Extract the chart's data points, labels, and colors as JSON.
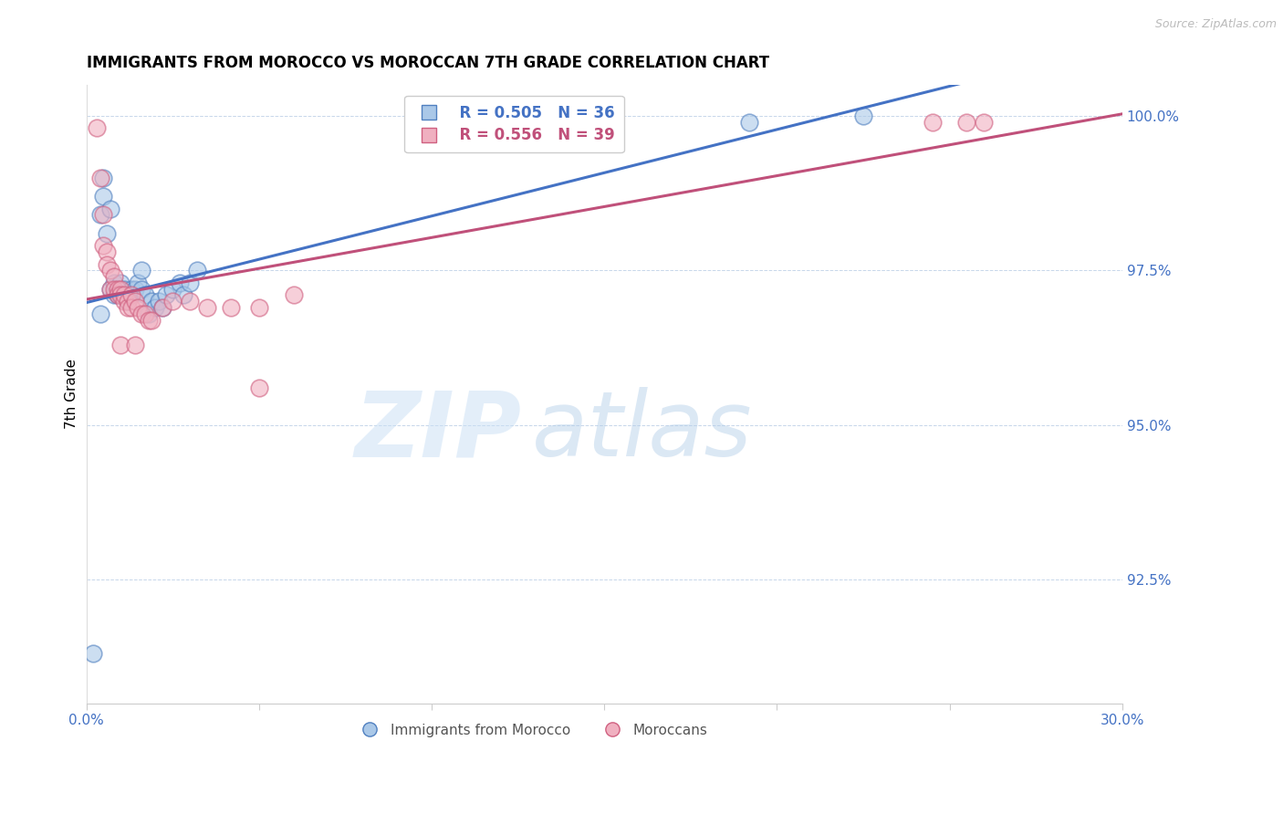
{
  "title": "IMMIGRANTS FROM MOROCCO VS MOROCCAN 7TH GRADE CORRELATION CHART",
  "source": "Source: ZipAtlas.com",
  "ylabel": "7th Grade",
  "xlim": [
    0.0,
    0.3
  ],
  "ylim": [
    0.905,
    1.005
  ],
  "yticks_right": [
    1.0,
    0.975,
    0.95,
    0.925
  ],
  "ytick_labels_right": [
    "100.0%",
    "97.5%",
    "95.0%",
    "92.5%"
  ],
  "xtick_positions": [
    0.0,
    0.05,
    0.1,
    0.15,
    0.2,
    0.25,
    0.3
  ],
  "xtick_labels": [
    "0.0%",
    "",
    "",
    "",
    "",
    "",
    "30.0%"
  ],
  "blue_fill": "#aac8e8",
  "pink_fill": "#f0b0c0",
  "blue_edge": "#5080c0",
  "pink_edge": "#d06080",
  "blue_line": "#4472c4",
  "pink_line": "#c0507a",
  "legend_R_blue": "R = 0.505",
  "legend_N_blue": "N = 36",
  "legend_R_pink": "R = 0.556",
  "legend_N_pink": "N = 39",
  "series1_label": "Immigrants from Morocco",
  "series2_label": "Moroccans",
  "watermark_zip": "ZIP",
  "watermark_atlas": "atlas",
  "blue_x": [
    0.002,
    0.004,
    0.005,
    0.005,
    0.006,
    0.007,
    0.007,
    0.008,
    0.008,
    0.009,
    0.009,
    0.01,
    0.01,
    0.011,
    0.012,
    0.013,
    0.013,
    0.014,
    0.015,
    0.016,
    0.016,
    0.017,
    0.018,
    0.019,
    0.02,
    0.021,
    0.022,
    0.023,
    0.025,
    0.027,
    0.028,
    0.03,
    0.032,
    0.004,
    0.192,
    0.225
  ],
  "blue_y": [
    0.913,
    0.984,
    0.99,
    0.987,
    0.981,
    0.985,
    0.972,
    0.973,
    0.971,
    0.972,
    0.971,
    0.973,
    0.971,
    0.972,
    0.97,
    0.971,
    0.972,
    0.972,
    0.973,
    0.972,
    0.975,
    0.971,
    0.968,
    0.97,
    0.969,
    0.97,
    0.969,
    0.971,
    0.972,
    0.973,
    0.971,
    0.973,
    0.975,
    0.968,
    0.999,
    1.0
  ],
  "pink_x": [
    0.003,
    0.004,
    0.005,
    0.005,
    0.006,
    0.006,
    0.007,
    0.007,
    0.008,
    0.008,
    0.009,
    0.009,
    0.01,
    0.01,
    0.011,
    0.011,
    0.012,
    0.012,
    0.013,
    0.013,
    0.014,
    0.015,
    0.016,
    0.017,
    0.018,
    0.019,
    0.022,
    0.025,
    0.03,
    0.035,
    0.042,
    0.05,
    0.06,
    0.01,
    0.014,
    0.255,
    0.245,
    0.26,
    0.05
  ],
  "pink_y": [
    0.998,
    0.99,
    0.984,
    0.979,
    0.978,
    0.976,
    0.975,
    0.972,
    0.974,
    0.972,
    0.972,
    0.971,
    0.972,
    0.971,
    0.97,
    0.971,
    0.97,
    0.969,
    0.971,
    0.969,
    0.97,
    0.969,
    0.968,
    0.968,
    0.967,
    0.967,
    0.969,
    0.97,
    0.97,
    0.969,
    0.969,
    0.969,
    0.971,
    0.963,
    0.963,
    0.999,
    0.999,
    0.999,
    0.956
  ]
}
